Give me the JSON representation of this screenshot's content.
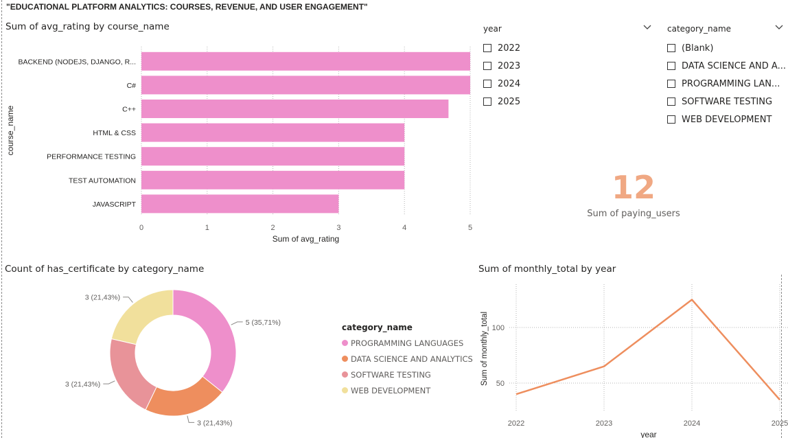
{
  "page": {
    "title": "\"EDUCATIONAL PLATFORM ANALYTICS: COURSES, REVENUE, AND USER ENGAGEMENT\""
  },
  "colors": {
    "bar": "#ee8fcb",
    "line": "#ee8e5e",
    "kpi": "#f0a883",
    "grid": "#b3b3b3"
  },
  "bar_visual": {
    "title": "Sum of avg_rating by course_name"
  },
  "year_slicer": {
    "header": "year",
    "items": [
      "2022",
      "2023",
      "2024",
      "2025"
    ]
  },
  "category_slicer": {
    "header": "category_name",
    "items": [
      "(Blank)",
      "DATA SCIENCE AND A...",
      "PROGRAMMING LAN...",
      "SOFTWARE TESTING",
      "WEB DEVELOPMENT"
    ]
  },
  "kpi": {
    "value": "12",
    "label": "Sum of paying_users"
  },
  "donut_visual": {
    "title": "Count of has_certificate by category_name"
  },
  "line_visual": {
    "title": "Sum of monthly_total by year"
  },
  "legend": {
    "title": "category_name"
  },
  "chart_data": [
    {
      "type": "bar",
      "orientation": "horizontal",
      "title": "Sum of avg_rating by course_name",
      "xlabel": "Sum of avg_rating",
      "ylabel": "course_name",
      "categories": [
        "BACKEND (NODEJS, DJANGO, R...",
        "C#",
        "C++",
        "HTML & CSS",
        "PERFORMANCE TESTING",
        "TEST AUTOMATION",
        "JAVASCRIPT"
      ],
      "values": [
        5,
        5,
        4.67,
        4,
        4,
        4,
        3
      ],
      "xlim": [
        0,
        5
      ],
      "xticks": [
        "0",
        "1",
        "2",
        "3",
        "4",
        "5"
      ],
      "grid": true
    },
    {
      "type": "pie",
      "donut": true,
      "title": "Count of has_certificate by category_name",
      "legend_title": "category_name",
      "legend_position": "right",
      "slices": [
        {
          "name": "PROGRAMMING LANGUAGES",
          "value": 5,
          "label": "5 (35,71%)",
          "color": "#ee8fcb"
        },
        {
          "name": "DATA SCIENCE AND ANALYTICS",
          "value": 3,
          "label": "3 (21,43%)",
          "color": "#ee8e5e"
        },
        {
          "name": "SOFTWARE TESTING",
          "value": 3,
          "label": "3 (21,43%)",
          "color": "#e89399"
        },
        {
          "name": "WEB DEVELOPMENT",
          "value": 3,
          "label": "3 (21,43%)",
          "color": "#f1e09c"
        }
      ]
    },
    {
      "type": "line",
      "title": "Sum of monthly_total by year",
      "xlabel": "year",
      "ylabel": "Sum of monthly_total",
      "x": [
        "2022",
        "2023",
        "2024",
        "2025"
      ],
      "series": [
        {
          "values": [
            40,
            65,
            125,
            35
          ]
        }
      ],
      "yticks": [
        "50",
        "100"
      ],
      "grid": true
    }
  ]
}
